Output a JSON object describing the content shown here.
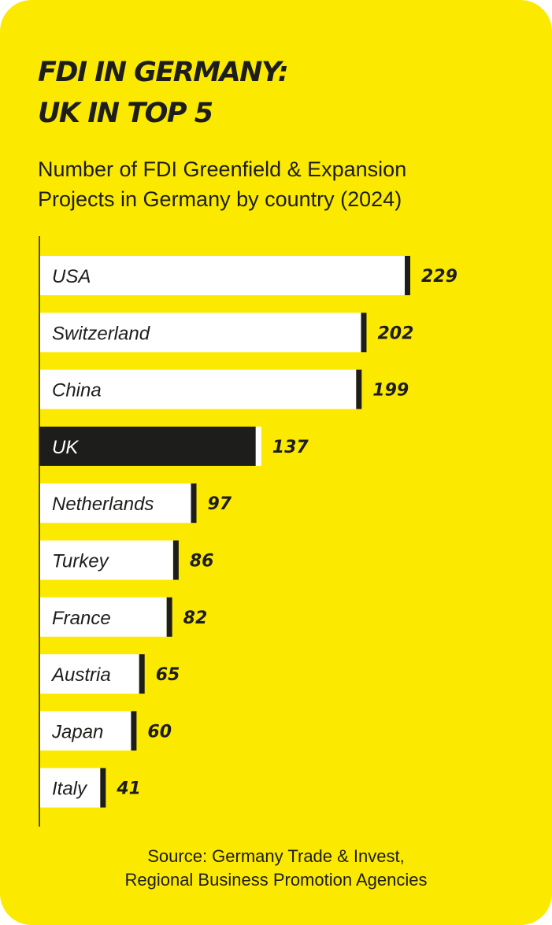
{
  "colors": {
    "background": "#FCE900",
    "bar": "#FFFFFF",
    "highlight_bar": "#1D1D1B",
    "cap": "#1D1D1B",
    "text": "#1D1D1B"
  },
  "title_lines": [
    "FDI IN GERMANY:",
    "UK IN TOP 5"
  ],
  "subtitle_lines": [
    "Number of FDI Greenfield & Expansion",
    "Projects in Germany by country (2024)"
  ],
  "source_lines": [
    "Source: Germany Trade & Invest,",
    "Regional Business Promotion Agencies"
  ],
  "chart_data": {
    "type": "bar",
    "orientation": "horizontal",
    "title": "FDI IN GERMANY: UK IN TOP 5",
    "subtitle": "Number of FDI Greenfield & Expansion Projects in Germany by country (2024)",
    "categories": [
      "USA",
      "Switzerland",
      "China",
      "UK",
      "Netherlands",
      "Turkey",
      "France",
      "Austria",
      "Japan",
      "Italy"
    ],
    "values": [
      229,
      202,
      199,
      137,
      97,
      86,
      82,
      65,
      60,
      41
    ],
    "highlight": "UK",
    "xlim": [
      0,
      229
    ],
    "grid": false,
    "legend": "none"
  }
}
